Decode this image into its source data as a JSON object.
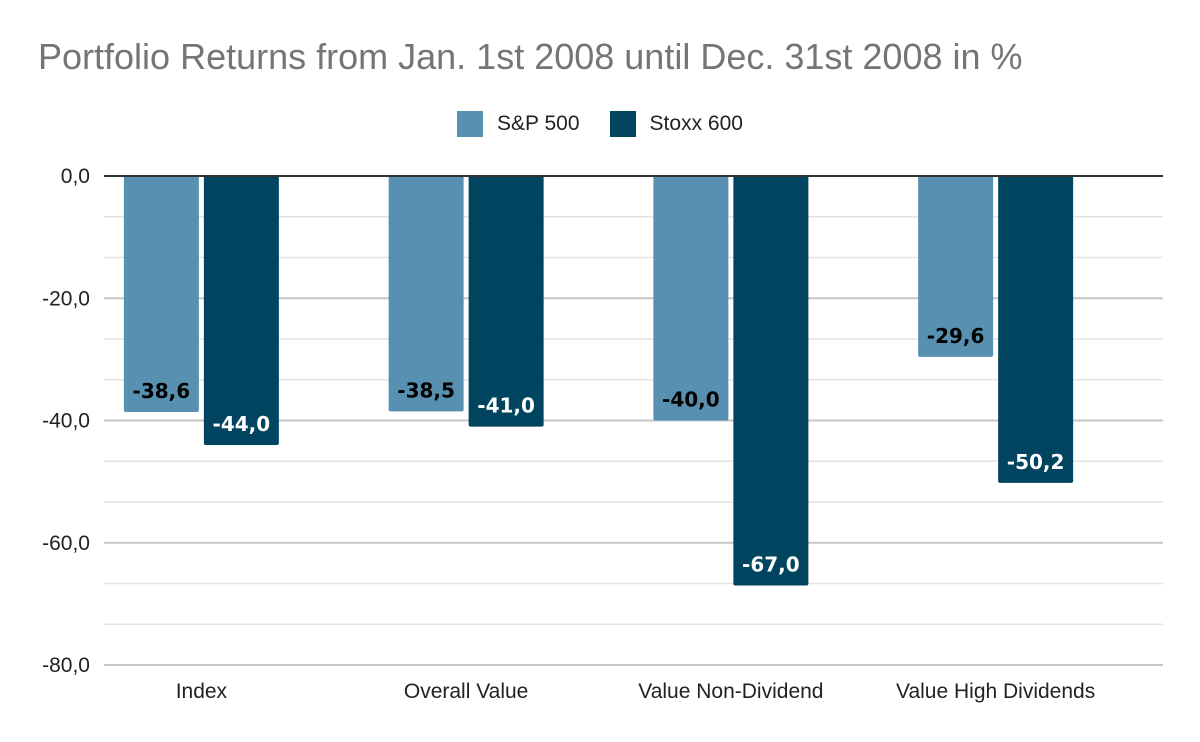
{
  "chart_data": {
    "type": "bar",
    "title": "Portfolio Returns from Jan. 1st 2008 until Dec. 31st 2008 in %",
    "xlabel": "",
    "ylabel": "",
    "categories": [
      "Index",
      "Overall Value",
      "Value Non-Dividend",
      "Value High Dividends"
    ],
    "series": [
      {
        "name": "S&P 500",
        "color": "#5790b0",
        "label_color": "#000000",
        "values": [
          -38.6,
          -38.5,
          -40.0,
          -29.6
        ],
        "labels": [
          "-38,6",
          "-38,5",
          "-40,0",
          "-29,6"
        ]
      },
      {
        "name": "Stoxx 600",
        "color": "#00445f",
        "label_color": "#ffffff",
        "values": [
          -44.0,
          -41.0,
          -67.0,
          -50.2
        ],
        "labels": [
          "-44,0",
          "-41,0",
          "-67,0",
          "-50,2"
        ]
      }
    ],
    "ylim": [
      -80,
      0
    ],
    "y_ticks": [
      0,
      -20,
      -40,
      -60,
      -80
    ],
    "y_tick_labels": [
      "0,0",
      "-20,0",
      "-40,0",
      "-60,0",
      "-80,0"
    ],
    "grid": true,
    "legend_position": "top"
  }
}
